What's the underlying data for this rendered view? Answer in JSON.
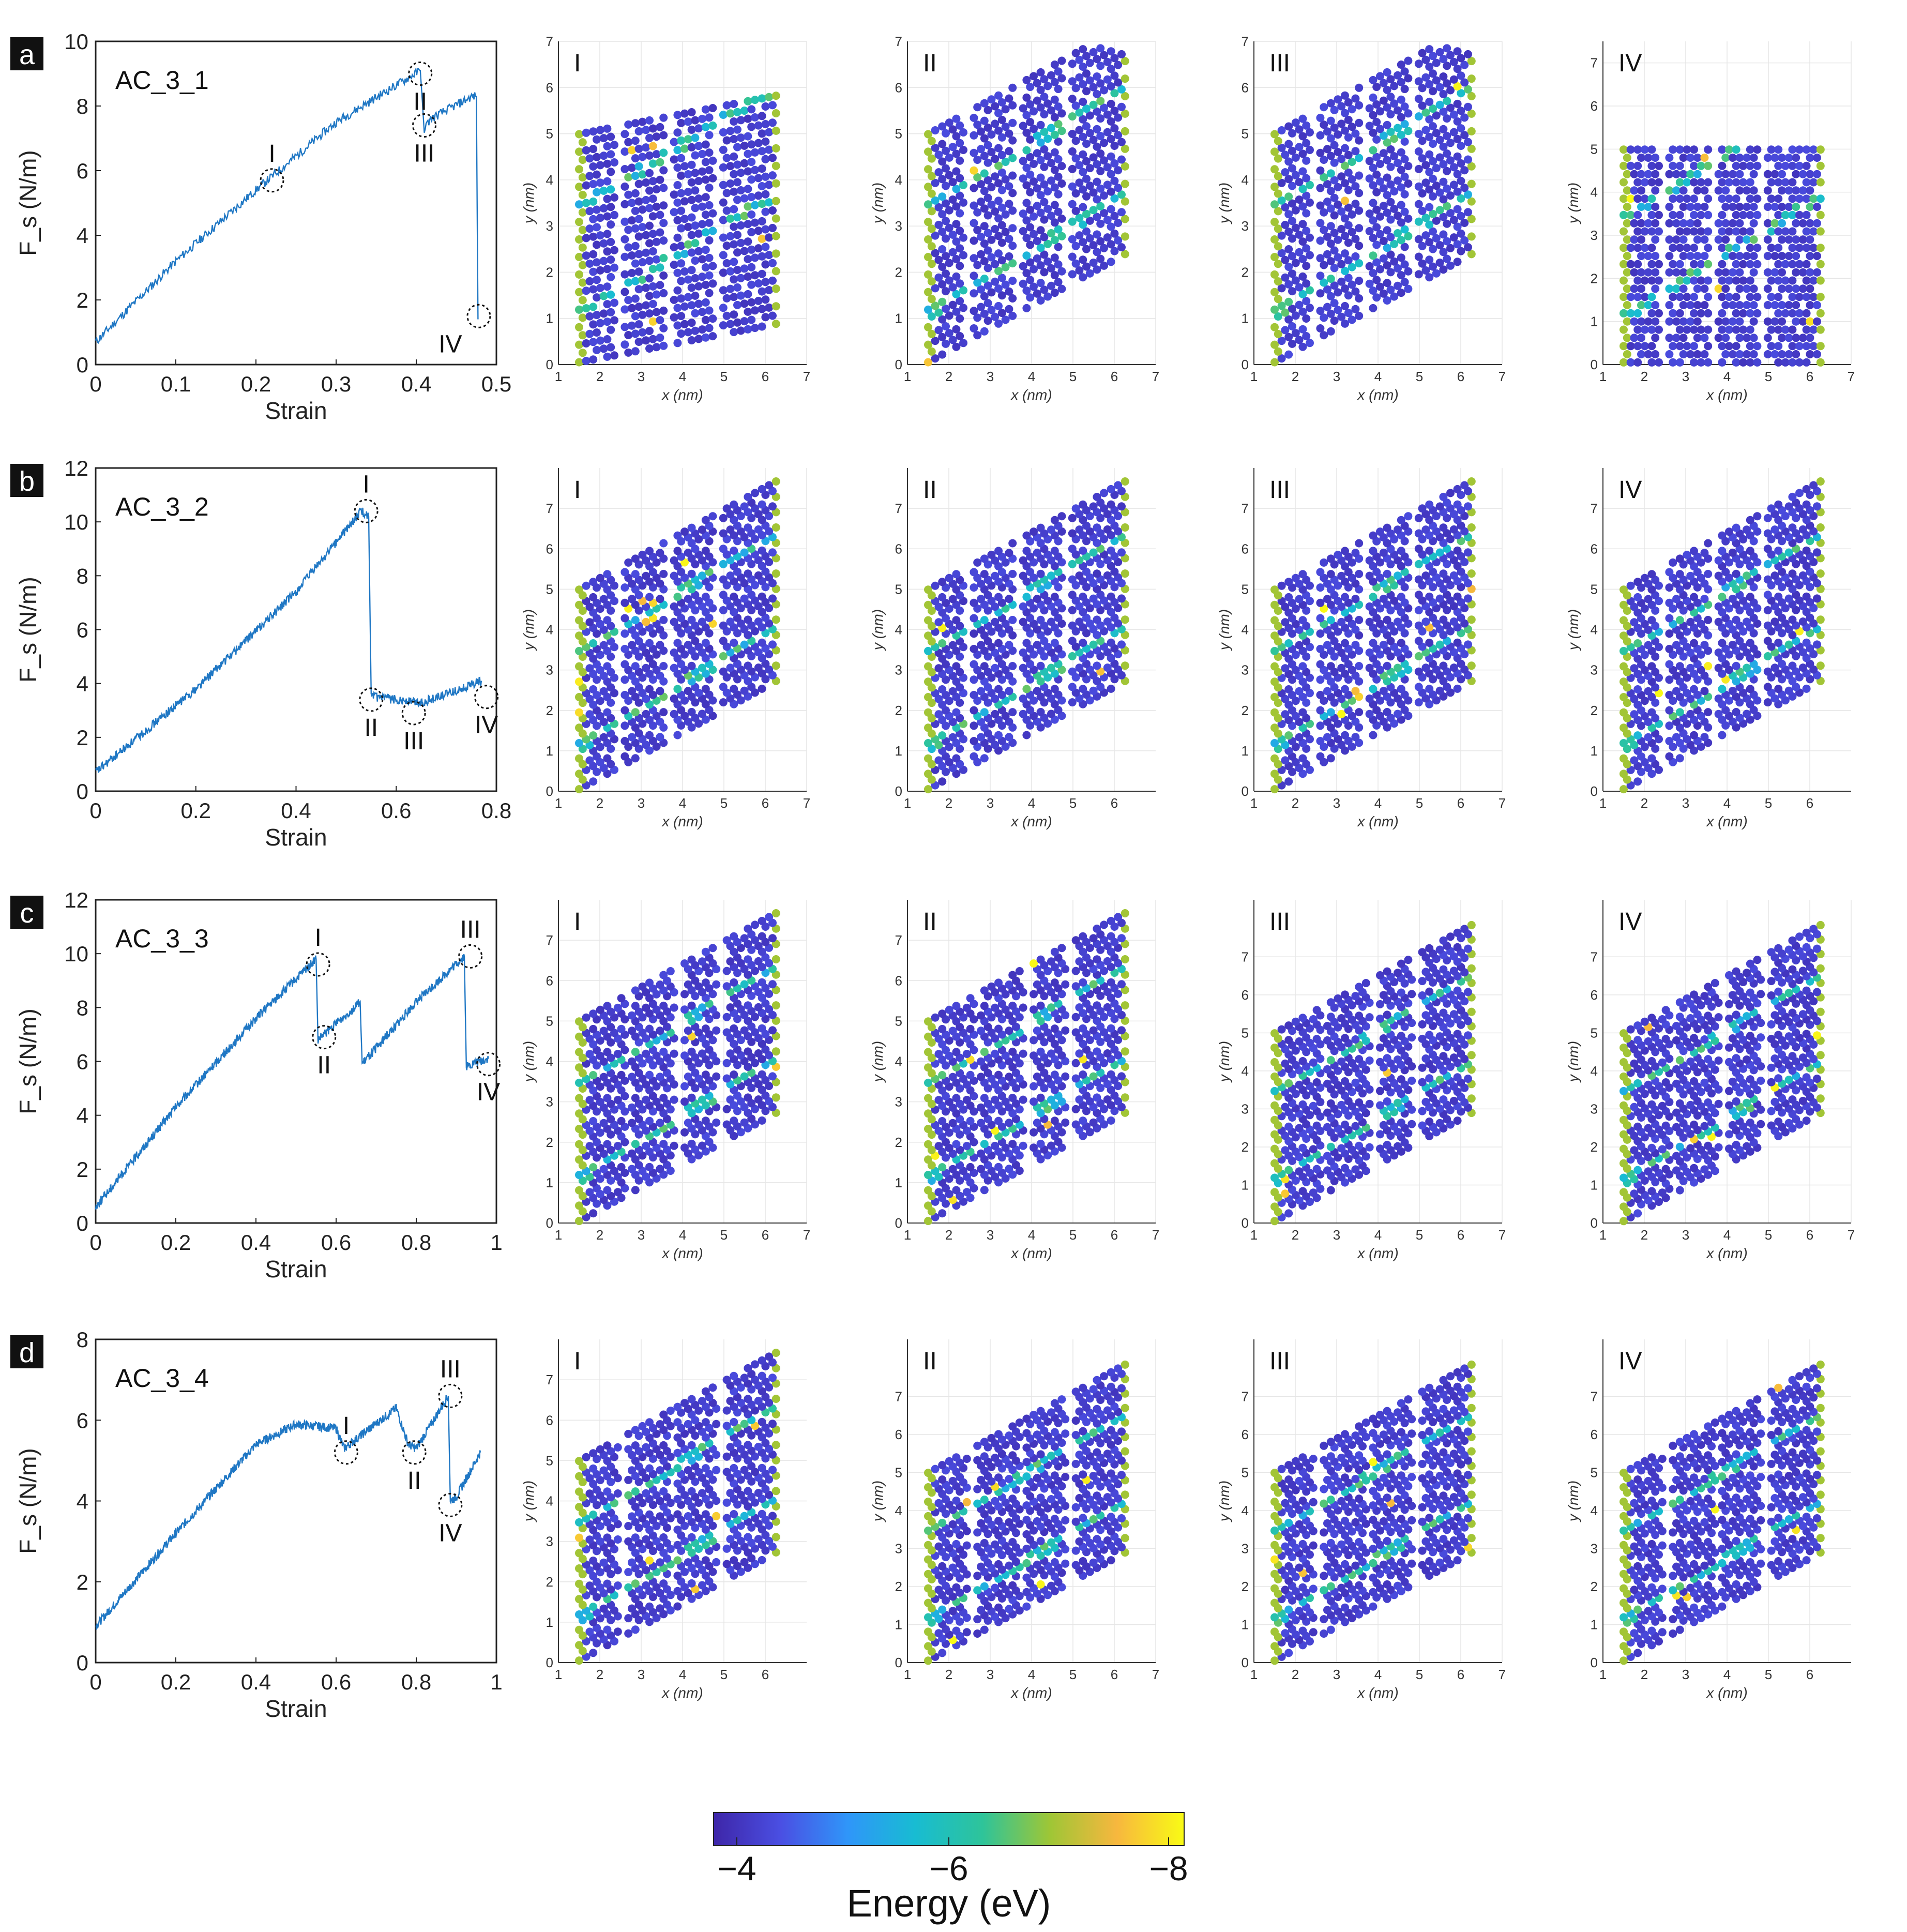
{
  "colorbar": {
    "label": "Energy (eV)",
    "ticks": [
      "−4",
      "−6",
      "−8"
    ],
    "colors": [
      "#3e26a8",
      "#4a4fe3",
      "#2f96f9",
      "#18bcd2",
      "#2ec49a",
      "#9ec636",
      "#f7b73e",
      "#f9fb15"
    ]
  },
  "axis_labels": {
    "x_nm": "x (nm)",
    "y_nm": "y (nm)"
  },
  "chart_data": [
    {
      "panel": "a",
      "type": "line",
      "title": "AC_3_1",
      "xlabel": "Strain",
      "ylabel": "F_s (N/m)",
      "xlim": [
        0,
        0.5
      ],
      "ylim": [
        0,
        10
      ],
      "xticks": [
        0,
        0.1,
        0.2,
        0.3,
        0.4,
        0.5
      ],
      "xtick_labels": [
        "0",
        "0.1",
        "0.2",
        "0.3",
        "0.4",
        "0.5"
      ],
      "yticks": [
        0,
        2,
        4,
        6,
        8,
        10
      ],
      "ytick_labels": [
        "0",
        "2",
        "4",
        "6",
        "8",
        "10"
      ],
      "series": [
        {
          "name": "AC_3_1",
          "x": [
            0,
            0.1,
            0.2,
            0.3,
            0.405,
            0.41,
            0.418,
            0.47,
            0.475,
            0.477
          ],
          "y": [
            0.7,
            3.2,
            5.4,
            7.5,
            9.1,
            7.3,
            7.6,
            8.3,
            8.3,
            1.4
          ]
        }
      ],
      "markers": [
        {
          "label": "I",
          "x": 0.22,
          "y": 5.7
        },
        {
          "label": "II",
          "x": 0.405,
          "y": 9.0
        },
        {
          "label": "III",
          "x": 0.41,
          "y": 7.4
        },
        {
          "label": "IV",
          "x": 0.478,
          "y": 1.5
        }
      ],
      "snapshots": [
        {
          "label": "I",
          "xlim": [
            1,
            7
          ],
          "xticks": [
            1,
            2,
            3,
            4,
            5,
            6,
            7
          ],
          "ylim": [
            0,
            7
          ],
          "yticks": [
            0,
            1,
            2,
            3,
            4,
            5,
            6,
            7
          ]
        },
        {
          "label": "II",
          "xlim": [
            1,
            7
          ],
          "xticks": [
            1,
            2,
            3,
            4,
            5,
            6,
            7
          ],
          "ylim": [
            0,
            7
          ],
          "yticks": [
            0,
            1,
            2,
            3,
            4,
            5,
            6,
            7
          ]
        },
        {
          "label": "III",
          "xlim": [
            1,
            7
          ],
          "xticks": [
            1,
            2,
            3,
            4,
            5,
            6,
            7
          ],
          "ylim": [
            0,
            7
          ],
          "yticks": [
            0,
            1,
            2,
            3,
            4,
            5,
            6,
            7
          ]
        },
        {
          "label": "IV",
          "xlim": [
            1,
            7
          ],
          "xticks": [
            1,
            2,
            3,
            4,
            5,
            6,
            7
          ],
          "ylim": [
            0,
            7.5
          ],
          "yticks": [
            0,
            1,
            2,
            3,
            4,
            5,
            6,
            7
          ]
        }
      ]
    },
    {
      "panel": "b",
      "type": "line",
      "title": "AC_3_2",
      "xlabel": "Strain",
      "ylabel": "F_s (N/m)",
      "xlim": [
        0,
        0.8
      ],
      "ylim": [
        0,
        12
      ],
      "xticks": [
        0,
        0.2,
        0.4,
        0.6,
        0.8
      ],
      "xtick_labels": [
        "0",
        "0.2",
        "0.4",
        "0.6",
        "0.8"
      ],
      "yticks": [
        0,
        2,
        4,
        6,
        8,
        10,
        12
      ],
      "ytick_labels": [
        "0",
        "2",
        "4",
        "6",
        "8",
        "10",
        "12"
      ],
      "series": [
        {
          "name": "AC_3_2",
          "x": [
            0,
            0.2,
            0.4,
            0.53,
            0.545,
            0.55,
            0.6,
            0.65,
            0.7,
            0.77
          ],
          "y": [
            0.7,
            3.8,
            7.4,
            10.4,
            10.2,
            3.5,
            3.4,
            3.3,
            3.6,
            4.1
          ]
        }
      ],
      "markers": [
        {
          "label": "I",
          "x": 0.54,
          "y": 10.4
        },
        {
          "label": "II",
          "x": 0.55,
          "y": 3.4
        },
        {
          "label": "III",
          "x": 0.635,
          "y": 2.9
        },
        {
          "label": "IV",
          "x": 0.78,
          "y": 3.5
        }
      ],
      "snapshots": [
        {
          "label": "I",
          "xlim": [
            1,
            7
          ],
          "xticks": [
            1,
            2,
            3,
            4,
            5,
            6,
            7
          ],
          "ylim": [
            0,
            8
          ],
          "yticks": [
            0,
            1,
            2,
            3,
            4,
            5,
            6,
            7
          ]
        },
        {
          "label": "II",
          "xlim": [
            1,
            7
          ],
          "xticks": [
            1,
            2,
            3,
            4,
            5,
            6
          ],
          "ylim": [
            0,
            8
          ],
          "yticks": [
            0,
            1,
            2,
            3,
            4,
            5,
            6,
            7
          ]
        },
        {
          "label": "III",
          "xlim": [
            1,
            7
          ],
          "xticks": [
            1,
            2,
            3,
            4,
            5,
            6,
            7
          ],
          "ylim": [
            0,
            8
          ],
          "yticks": [
            0,
            1,
            2,
            3,
            4,
            5,
            6,
            7
          ]
        },
        {
          "label": "IV",
          "xlim": [
            1,
            7
          ],
          "xticks": [
            1,
            2,
            3,
            4,
            5,
            6
          ],
          "ylim": [
            0,
            8
          ],
          "yticks": [
            0,
            1,
            2,
            3,
            4,
            5,
            6,
            7
          ]
        }
      ]
    },
    {
      "panel": "c",
      "type": "line",
      "title": "AC_3_3",
      "xlabel": "Strain",
      "ylabel": "F_s (N/m)",
      "xlim": [
        0,
        1
      ],
      "ylim": [
        0,
        12
      ],
      "xticks": [
        0,
        0.2,
        0.4,
        0.6,
        0.8,
        1
      ],
      "xtick_labels": [
        "0",
        "0.2",
        "0.4",
        "0.6",
        "0.8",
        "1"
      ],
      "yticks": [
        0,
        2,
        4,
        6,
        8,
        10,
        12
      ],
      "ytick_labels": [
        "0",
        "2",
        "4",
        "6",
        "8",
        "10",
        "12"
      ],
      "series": [
        {
          "name": "AC_3_3",
          "x": [
            0,
            0.2,
            0.4,
            0.55,
            0.555,
            0.57,
            0.66,
            0.665,
            0.8,
            0.92,
            0.925,
            0.94,
            0.98
          ],
          "y": [
            0.6,
            4.3,
            7.6,
            9.8,
            6.8,
            7.0,
            8.2,
            5.9,
            8.2,
            9.9,
            5.8,
            5.9,
            6.1
          ]
        }
      ],
      "markers": [
        {
          "label": "I",
          "x": 0.555,
          "y": 9.6
        },
        {
          "label": "II",
          "x": 0.57,
          "y": 6.9
        },
        {
          "label": "III",
          "x": 0.935,
          "y": 9.9
        },
        {
          "label": "IV",
          "x": 0.98,
          "y": 5.9
        }
      ],
      "snapshots": [
        {
          "label": "I",
          "xlim": [
            1,
            7
          ],
          "xticks": [
            1,
            2,
            3,
            4,
            5,
            6,
            7
          ],
          "ylim": [
            0,
            8
          ],
          "yticks": [
            0,
            1,
            2,
            3,
            4,
            5,
            6,
            7
          ]
        },
        {
          "label": "II",
          "xlim": [
            1,
            7
          ],
          "xticks": [
            1,
            2,
            3,
            4,
            5,
            6,
            7
          ],
          "ylim": [
            0,
            8
          ],
          "yticks": [
            0,
            1,
            2,
            3,
            4,
            5,
            6,
            7
          ]
        },
        {
          "label": "III",
          "xlim": [
            1,
            7
          ],
          "xticks": [
            1,
            2,
            3,
            4,
            5,
            6,
            7
          ],
          "ylim": [
            0,
            8.5
          ],
          "yticks": [
            0,
            1,
            2,
            3,
            4,
            5,
            6,
            7
          ]
        },
        {
          "label": "IV",
          "xlim": [
            1,
            7
          ],
          "xticks": [
            1,
            2,
            3,
            4,
            5,
            6,
            7
          ],
          "ylim": [
            0,
            8.5
          ],
          "yticks": [
            0,
            1,
            2,
            3,
            4,
            5,
            6,
            7
          ]
        }
      ]
    },
    {
      "panel": "d",
      "type": "line",
      "title": "AC_3_4",
      "xlabel": "Strain",
      "ylabel": "F_s (N/m)",
      "xlim": [
        0,
        1
      ],
      "ylim": [
        0,
        8
      ],
      "xticks": [
        0,
        0.2,
        0.4,
        0.6,
        0.8,
        1
      ],
      "xtick_labels": [
        "0",
        "0.2",
        "0.4",
        "0.6",
        "0.8",
        "1"
      ],
      "yticks": [
        0,
        2,
        4,
        6,
        8
      ],
      "ytick_labels": [
        "0",
        "2",
        "4",
        "6",
        "8"
      ],
      "series": [
        {
          "name": "AC_3_4",
          "x": [
            0,
            0.2,
            0.4,
            0.5,
            0.6,
            0.62,
            0.75,
            0.78,
            0.8,
            0.88,
            0.885,
            0.9,
            0.96
          ],
          "y": [
            0.9,
            3.2,
            5.4,
            5.9,
            5.8,
            5.3,
            6.3,
            5.4,
            5.3,
            6.6,
            4.0,
            4.1,
            5.2
          ]
        }
      ],
      "markers": [
        {
          "label": "I",
          "x": 0.625,
          "y": 5.2
        },
        {
          "label": "II",
          "x": 0.795,
          "y": 5.2
        },
        {
          "label": "III",
          "x": 0.885,
          "y": 6.6
        },
        {
          "label": "IV",
          "x": 0.885,
          "y": 3.9
        }
      ],
      "snapshots": [
        {
          "label": "I",
          "xlim": [
            1,
            7
          ],
          "xticks": [
            1,
            2,
            3,
            4,
            5,
            6
          ],
          "ylim": [
            0,
            8
          ],
          "yticks": [
            0,
            1,
            2,
            3,
            4,
            5,
            6,
            7
          ]
        },
        {
          "label": "II",
          "xlim": [
            1,
            7
          ],
          "xticks": [
            1,
            2,
            3,
            4,
            5,
            6,
            7
          ],
          "ylim": [
            0,
            8.5
          ],
          "yticks": [
            0,
            1,
            2,
            3,
            4,
            5,
            6,
            7
          ]
        },
        {
          "label": "III",
          "xlim": [
            1,
            7
          ],
          "xticks": [
            1,
            2,
            3,
            4,
            5,
            6,
            7
          ],
          "ylim": [
            0,
            8.5
          ],
          "yticks": [
            0,
            1,
            2,
            3,
            4,
            5,
            6,
            7
          ]
        },
        {
          "label": "IV",
          "xlim": [
            1,
            7
          ],
          "xticks": [
            1,
            2,
            3,
            4,
            5,
            6
          ],
          "ylim": [
            0,
            8.5
          ],
          "yticks": [
            0,
            1,
            2,
            3,
            4,
            5,
            6,
            7
          ]
        }
      ]
    }
  ]
}
